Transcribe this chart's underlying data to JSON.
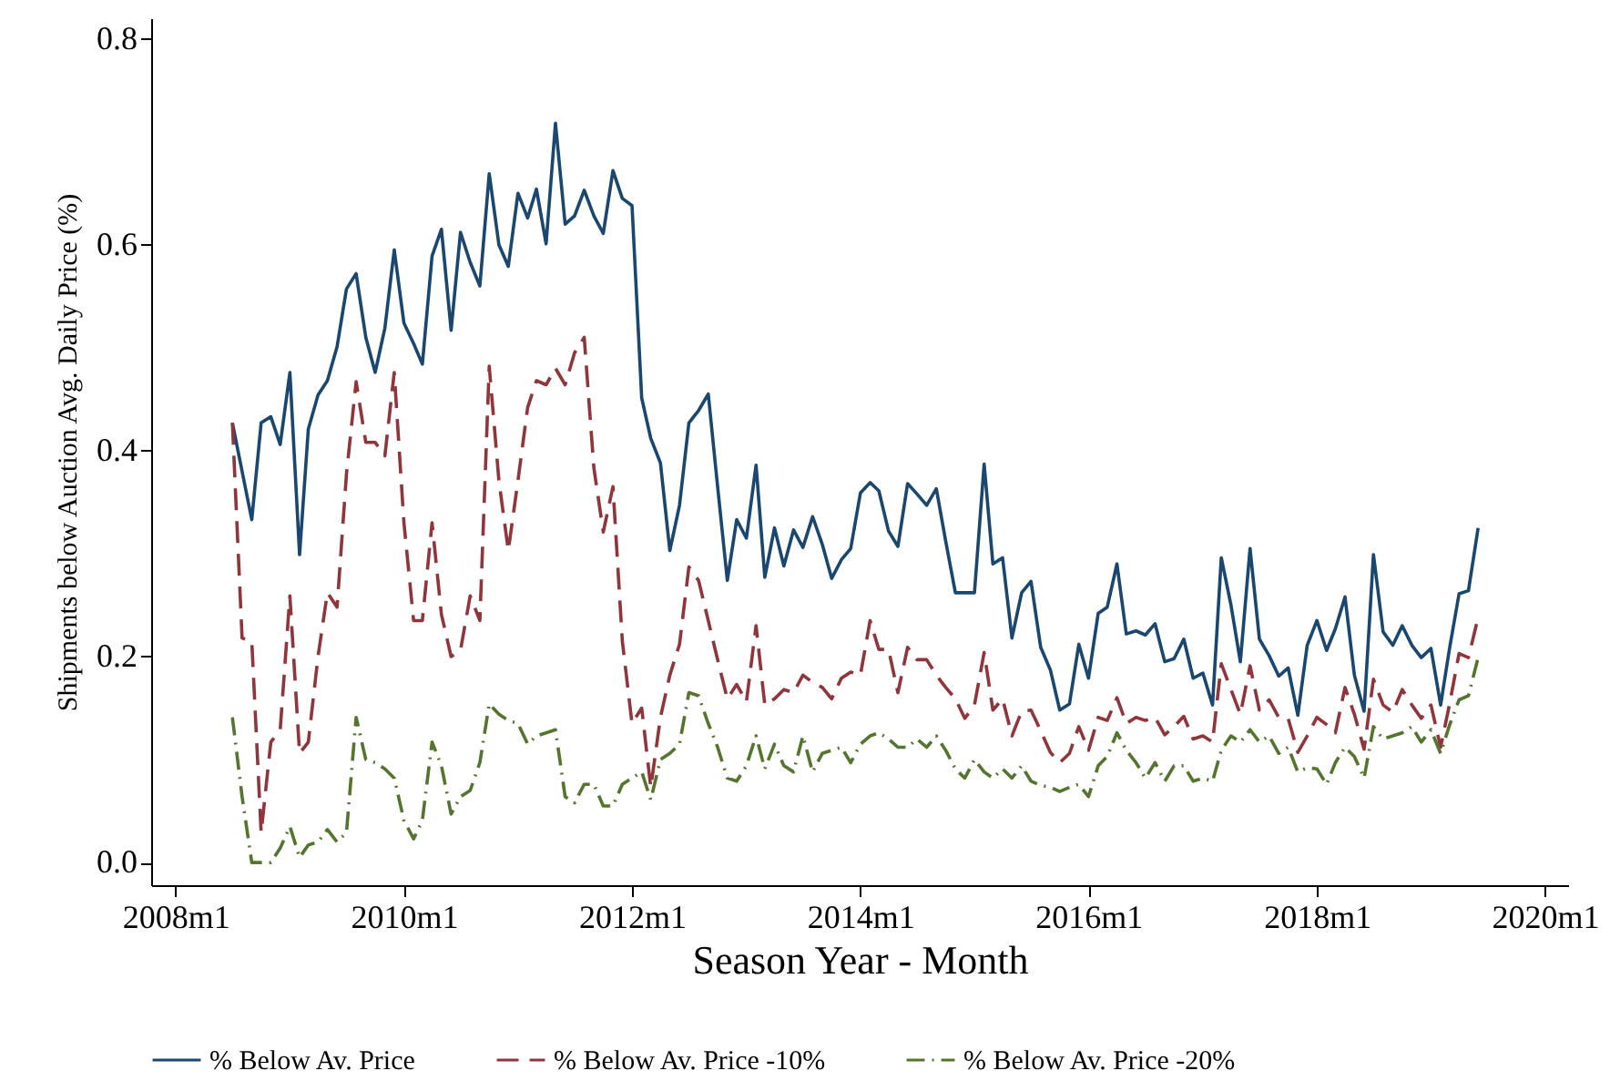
{
  "chart_data": {
    "type": "line",
    "xlabel": "Season Year - Month",
    "ylabel": "Shipments below Auction Avg. Daily Price (%)",
    "x": [
      "2008-07",
      "2008-08",
      "2008-09",
      "2008-10",
      "2008-11",
      "2008-12",
      "2009-01",
      "2009-02",
      "2009-03",
      "2009-04",
      "2009-05",
      "2009-06",
      "2009-07",
      "2009-08",
      "2009-09",
      "2009-10",
      "2009-11",
      "2009-12",
      "2010-01",
      "2010-02",
      "2010-03",
      "2010-04",
      "2010-05",
      "2010-06",
      "2010-07",
      "2010-08",
      "2010-09",
      "2010-10",
      "2010-11",
      "2010-12",
      "2011-01",
      "2011-02",
      "2011-03",
      "2011-04",
      "2011-05",
      "2011-06",
      "2011-07",
      "2011-08",
      "2011-09",
      "2011-10",
      "2011-11",
      "2011-12",
      "2012-01",
      "2012-02",
      "2012-03",
      "2012-04",
      "2012-05",
      "2012-06",
      "2012-07",
      "2012-08",
      "2012-09",
      "2012-10",
      "2012-11",
      "2012-12",
      "2013-01",
      "2013-02",
      "2013-03",
      "2013-04",
      "2013-05",
      "2013-06",
      "2013-07",
      "2013-08",
      "2013-09",
      "2013-10",
      "2013-11",
      "2013-12",
      "2014-01",
      "2014-02",
      "2014-03",
      "2014-04",
      "2014-05",
      "2014-06",
      "2014-07",
      "2014-08",
      "2014-09",
      "2014-10",
      "2014-11",
      "2014-12",
      "2015-01",
      "2015-02",
      "2015-03",
      "2015-04",
      "2015-05",
      "2015-06",
      "2015-07",
      "2015-08",
      "2015-09",
      "2015-10",
      "2015-11",
      "2015-12",
      "2016-01",
      "2016-02",
      "2016-03",
      "2016-04",
      "2016-05",
      "2016-06",
      "2016-07",
      "2016-08",
      "2016-09",
      "2016-10",
      "2016-11",
      "2016-12",
      "2017-01",
      "2017-02",
      "2017-03",
      "2017-04",
      "2017-05",
      "2017-06",
      "2017-07",
      "2017-08",
      "2017-09",
      "2017-10",
      "2017-11",
      "2017-12",
      "2018-01",
      "2018-02",
      "2018-03",
      "2018-04",
      "2018-05",
      "2018-06",
      "2018-07",
      "2018-08",
      "2018-09",
      "2018-10",
      "2018-11",
      "2018-12",
      "2019-01",
      "2019-02",
      "2019-03",
      "2019-04",
      "2019-05",
      "2019-06"
    ],
    "series": [
      {
        "name": "% Below Av. Price",
        "color": "#1a476f",
        "line_style": "solid",
        "values": [
          0.427,
          0.38,
          0.333,
          0.427,
          0.433,
          0.406,
          0.476,
          0.299,
          0.421,
          0.454,
          0.468,
          0.501,
          0.557,
          0.572,
          0.51,
          0.476,
          0.519,
          0.595,
          0.524,
          0.504,
          0.484,
          0.589,
          0.615,
          0.517,
          0.612,
          0.583,
          0.56,
          0.669,
          0.6,
          0.579,
          0.65,
          0.626,
          0.654,
          0.601,
          0.718,
          0.62,
          0.628,
          0.653,
          0.628,
          0.611,
          0.672,
          0.645,
          0.638,
          0.451,
          0.412,
          0.388,
          0.303,
          0.347,
          0.427,
          0.439,
          0.455,
          0.365,
          0.274,
          0.333,
          0.315,
          0.386,
          0.277,
          0.325,
          0.288,
          0.323,
          0.306,
          0.336,
          0.309,
          0.276,
          0.294,
          0.305,
          0.359,
          0.369,
          0.361,
          0.322,
          0.307,
          0.368,
          0.358,
          0.347,
          0.363,
          0.312,
          0.262,
          0.262,
          0.262,
          0.387,
          0.29,
          0.296,
          0.218,
          0.262,
          0.273,
          0.209,
          0.187,
          0.148,
          0.154,
          0.212,
          0.179,
          0.242,
          0.248,
          0.29,
          0.222,
          0.225,
          0.221,
          0.232,
          0.195,
          0.198,
          0.217,
          0.179,
          0.184,
          0.153,
          0.296,
          0.25,
          0.195,
          0.305,
          0.217,
          0.201,
          0.181,
          0.189,
          0.143,
          0.211,
          0.235,
          0.206,
          0.227,
          0.258,
          0.182,
          0.147,
          0.299,
          0.224,
          0.211,
          0.23,
          0.211,
          0.199,
          0.208,
          0.153,
          0.207,
          0.261,
          0.264,
          0.325
        ]
      },
      {
        "name": "% Below Av. Price -10%",
        "color": "#90353b",
        "line_style": "dashed",
        "values": [
          0.427,
          0.218,
          0.215,
          0.029,
          0.117,
          0.129,
          0.259,
          0.106,
          0.117,
          0.2,
          0.262,
          0.248,
          0.377,
          0.467,
          0.408,
          0.408,
          0.395,
          0.476,
          0.33,
          0.235,
          0.235,
          0.33,
          0.241,
          0.2,
          0.206,
          0.259,
          0.235,
          0.482,
          0.371,
          0.303,
          0.371,
          0.442,
          0.468,
          0.464,
          0.48,
          0.464,
          0.495,
          0.51,
          0.383,
          0.321,
          0.365,
          0.215,
          0.135,
          0.15,
          0.073,
          0.141,
          0.182,
          0.212,
          0.287,
          0.274,
          0.235,
          0.197,
          0.159,
          0.173,
          0.156,
          0.23,
          0.153,
          0.159,
          0.168,
          0.165,
          0.182,
          0.175,
          0.17,
          0.159,
          0.179,
          0.185,
          0.182,
          0.235,
          0.207,
          0.207,
          0.165,
          0.209,
          0.197,
          0.197,
          0.182,
          0.17,
          0.159,
          0.14,
          0.153,
          0.204,
          0.148,
          0.159,
          0.123,
          0.147,
          0.148,
          0.128,
          0.107,
          0.097,
          0.106,
          0.132,
          0.109,
          0.141,
          0.138,
          0.16,
          0.135,
          0.141,
          0.138,
          0.141,
          0.124,
          0.132,
          0.142,
          0.12,
          0.123,
          0.117,
          0.193,
          0.168,
          0.144,
          0.191,
          0.148,
          0.158,
          0.141,
          0.14,
          0.107,
          0.123,
          0.141,
          0.134,
          0.126,
          0.17,
          0.144,
          0.11,
          0.178,
          0.153,
          0.146,
          0.168,
          0.153,
          0.14,
          0.153,
          0.112,
          0.153,
          0.203,
          0.199,
          0.238
        ]
      },
      {
        "name": "% Below Av. Price -20%",
        "color": "#55752f",
        "line_style": "dashdot",
        "values": [
          0.141,
          0.064,
          0.0,
          0.0,
          0.0,
          0.014,
          0.035,
          0.005,
          0.017,
          0.02,
          0.032,
          0.02,
          0.029,
          0.141,
          0.1,
          0.097,
          0.091,
          0.082,
          0.041,
          0.023,
          0.041,
          0.117,
          0.094,
          0.047,
          0.064,
          0.07,
          0.097,
          0.154,
          0.144,
          0.138,
          0.135,
          0.115,
          0.123,
          0.126,
          0.129,
          0.064,
          0.058,
          0.076,
          0.076,
          0.055,
          0.055,
          0.076,
          0.082,
          0.088,
          0.061,
          0.1,
          0.106,
          0.115,
          0.165,
          0.162,
          0.135,
          0.112,
          0.082,
          0.079,
          0.094,
          0.123,
          0.091,
          0.115,
          0.094,
          0.088,
          0.123,
          0.088,
          0.106,
          0.109,
          0.112,
          0.097,
          0.115,
          0.123,
          0.126,
          0.12,
          0.112,
          0.112,
          0.12,
          0.112,
          0.123,
          0.109,
          0.091,
          0.082,
          0.1,
          0.088,
          0.082,
          0.091,
          0.082,
          0.094,
          0.079,
          0.075,
          0.073,
          0.069,
          0.073,
          0.076,
          0.064,
          0.094,
          0.103,
          0.126,
          0.109,
          0.097,
          0.082,
          0.097,
          0.079,
          0.094,
          0.094,
          0.079,
          0.082,
          0.079,
          0.109,
          0.123,
          0.117,
          0.129,
          0.117,
          0.123,
          0.106,
          0.112,
          0.088,
          0.092,
          0.091,
          0.076,
          0.097,
          0.112,
          0.103,
          0.082,
          0.132,
          0.12,
          0.123,
          0.126,
          0.132,
          0.117,
          0.129,
          0.106,
          0.133,
          0.158,
          0.162,
          0.199
        ]
      }
    ],
    "xlim": [
      "2007-10-15",
      "2020-03-15"
    ],
    "xticks": [
      {
        "value": "2008-01",
        "label": "2008m1"
      },
      {
        "value": "2010-01",
        "label": "2010m1"
      },
      {
        "value": "2012-01",
        "label": "2012m1"
      },
      {
        "value": "2014-01",
        "label": "2014m1"
      },
      {
        "value": "2016-01",
        "label": "2016m1"
      },
      {
        "value": "2018-01",
        "label": "2018m1"
      },
      {
        "value": "2020-01",
        "label": "2020m1"
      }
    ],
    "ylim": [
      -0.022,
      0.82
    ],
    "yticks": [
      {
        "value": 0,
        "label": "0.0"
      },
      {
        "value": 0.2,
        "label": "0.2"
      },
      {
        "value": 0.4,
        "label": "0.4"
      },
      {
        "value": 0.6,
        "label": "0.6"
      },
      {
        "value": 0.8,
        "label": "0.8"
      }
    ],
    "grid": false,
    "legend": "bottom"
  }
}
